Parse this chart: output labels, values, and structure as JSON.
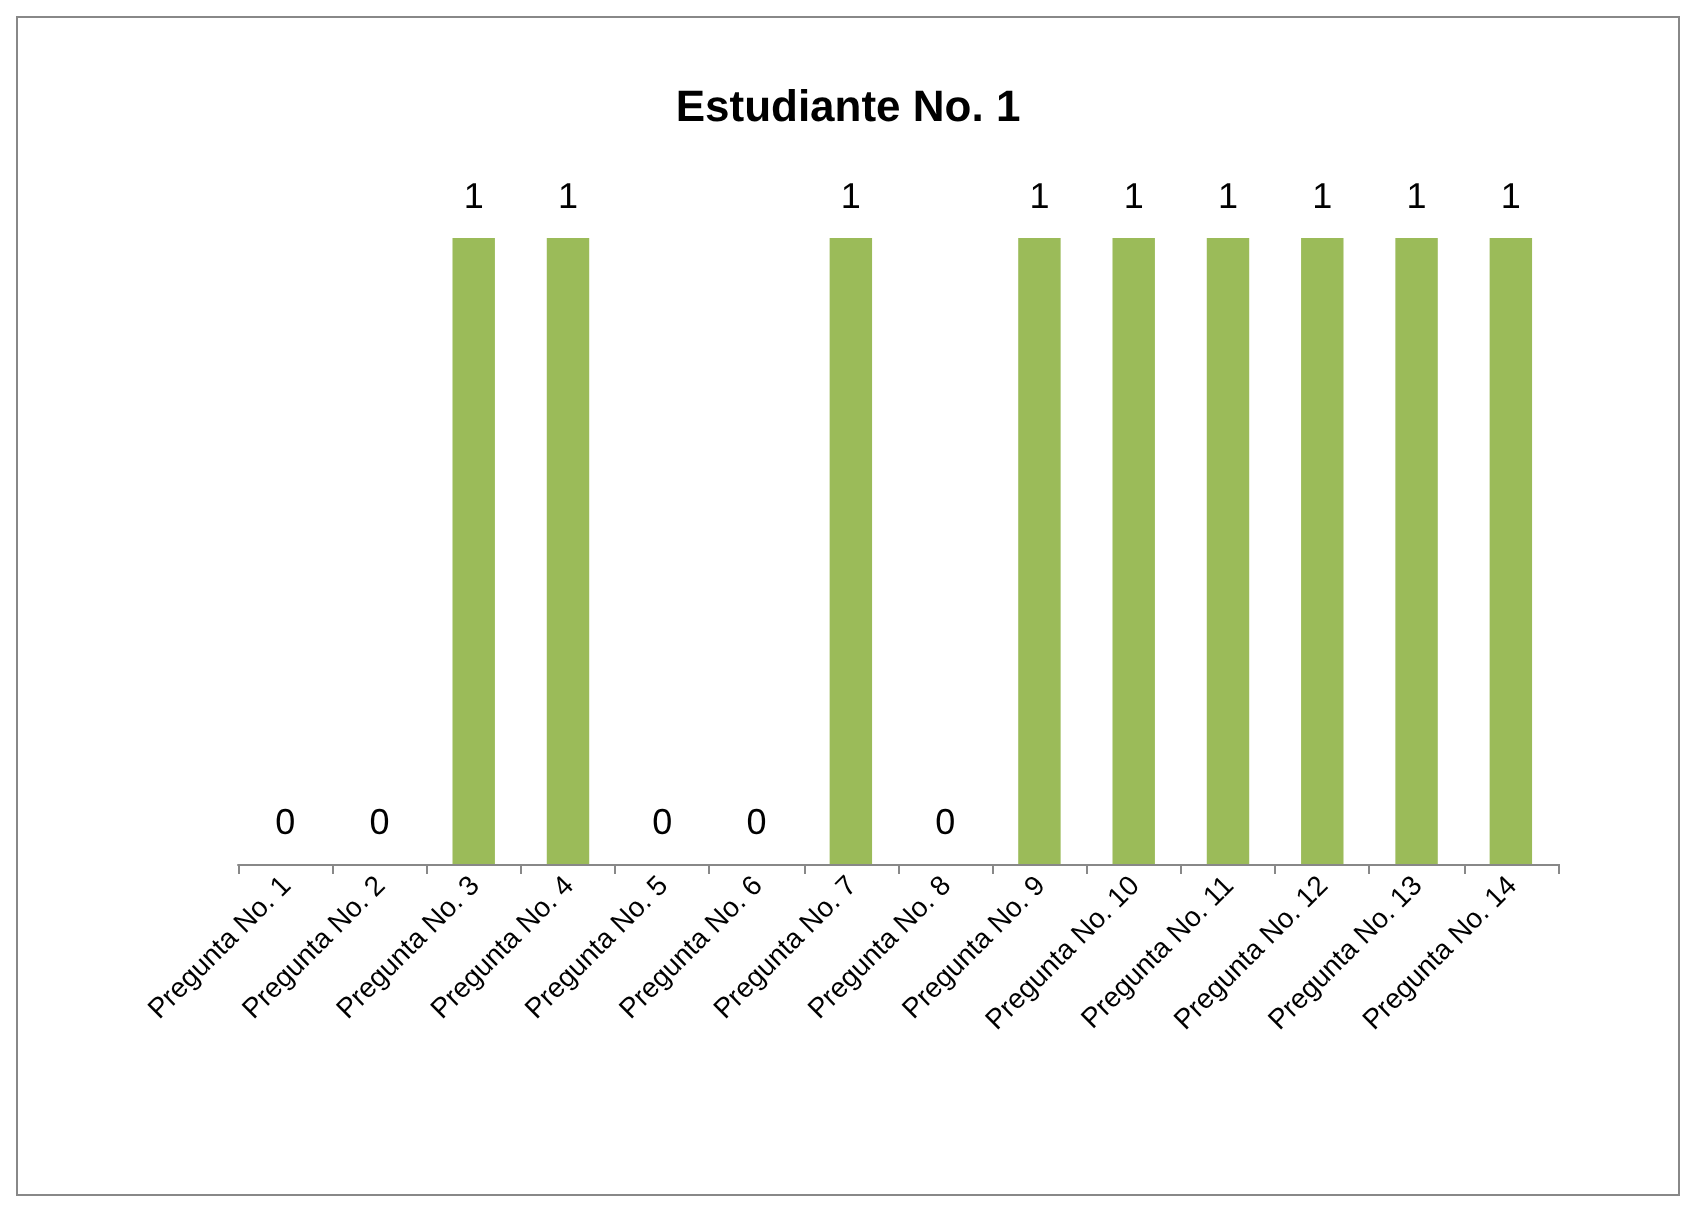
{
  "chart_data": {
    "type": "bar",
    "title": "Estudiante No. 1",
    "categories": [
      "Pregunta No. 1",
      "Pregunta No. 2",
      "Pregunta No. 3",
      "Pregunta No. 4",
      "Pregunta No. 5",
      "Pregunta No. 6",
      "Pregunta No. 7",
      "Pregunta No. 8",
      "Pregunta No. 9",
      "Pregunta No. 10",
      "Pregunta No. 11",
      "Pregunta No. 12",
      "Pregunta No. 13",
      "Pregunta No. 14"
    ],
    "values": [
      0,
      0,
      1,
      1,
      0,
      0,
      1,
      0,
      1,
      1,
      1,
      1,
      1,
      1
    ],
    "color": "#9bbb59",
    "data_labels": true
  }
}
